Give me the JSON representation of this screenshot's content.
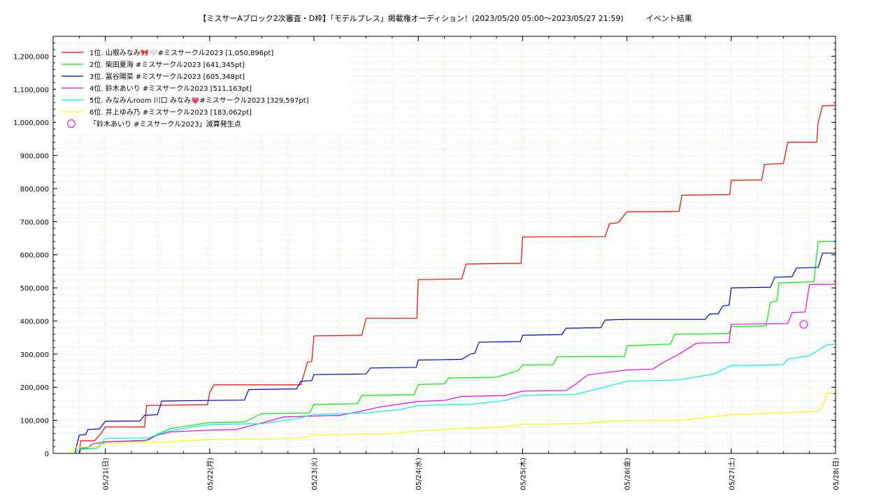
{
  "chart_data": {
    "type": "line",
    "title": "【ミスサーAブロック2次審査・D枠】「モデルプレス」掲載権オーディション！(2023/05/20 05:00〜2023/05/27 21:59)",
    "subtitle": "イベント結果",
    "xlabel": "",
    "ylabel": "",
    "x_range": [
      "2023-05-20 12:00",
      "2023-05-28 00:00"
    ],
    "ylim": [
      0,
      1260000
    ],
    "x_ticks": [
      {
        "date": "2023-05-21",
        "label": "05/21(日)"
      },
      {
        "date": "2023-05-22",
        "label": "05/22(月)"
      },
      {
        "date": "2023-05-23",
        "label": "05/23(火)"
      },
      {
        "date": "2023-05-24",
        "label": "05/24(水)"
      },
      {
        "date": "2023-05-25",
        "label": "05/25(木)"
      },
      {
        "date": "2023-05-26",
        "label": "05/26(金)"
      },
      {
        "date": "2023-05-27",
        "label": "05/27(土)"
      },
      {
        "date": "2023-05-28",
        "label": "05/28(日)"
      }
    ],
    "y_ticks": [
      {
        "value": 0,
        "label": "0"
      },
      {
        "value": 100000,
        "label": "100,000"
      },
      {
        "value": 200000,
        "label": "200,000"
      },
      {
        "value": 300000,
        "label": "300,000"
      },
      {
        "value": 400000,
        "label": "400,000"
      },
      {
        "value": 500000,
        "label": "500,000"
      },
      {
        "value": 600000,
        "label": "600,000"
      },
      {
        "value": 700000,
        "label": "700,000"
      },
      {
        "value": 800000,
        "label": "800,000"
      },
      {
        "value": 900000,
        "label": "900,000"
      },
      {
        "value": 1000000,
        "label": "1,000,000"
      },
      {
        "value": 1100000,
        "label": "1,100,000"
      },
      {
        "value": 1200000,
        "label": "1,200,000"
      }
    ],
    "grid": true,
    "legend_position": "top-left",
    "series": [
      {
        "name": "1位. 山根みなみ🎀🤍#ミスサークル2023 [1,050,896pt]",
        "color": "#ff0000",
        "points": [
          [
            "2023-05-20 18:00",
            0
          ],
          [
            "2023-05-20 18:20",
            38000
          ],
          [
            "2023-05-20 21:30",
            38000
          ],
          [
            "2023-05-20 23:00",
            60000
          ],
          [
            "2023-05-21 00:00",
            80000
          ],
          [
            "2023-05-21 09:00",
            80000
          ],
          [
            "2023-05-21 09:30",
            145000
          ],
          [
            "2023-05-21 23:30",
            147000
          ],
          [
            "2023-05-22 00:00",
            183000
          ],
          [
            "2023-05-22 01:00",
            207000
          ],
          [
            "2023-05-22 21:00",
            207000
          ],
          [
            "2023-05-22 22:30",
            275000
          ],
          [
            "2023-05-22 23:30",
            278000
          ],
          [
            "2023-05-23 00:00",
            355000
          ],
          [
            "2023-05-23 11:00",
            357000
          ],
          [
            "2023-05-23 12:00",
            408000
          ],
          [
            "2023-05-23 23:40",
            408000
          ],
          [
            "2023-05-24 00:00",
            525000
          ],
          [
            "2023-05-24 10:00",
            527000
          ],
          [
            "2023-05-24 11:00",
            572000
          ],
          [
            "2023-05-24 22:00",
            574000
          ],
          [
            "2023-05-24 23:40",
            574000
          ],
          [
            "2023-05-25 00:00",
            654000
          ],
          [
            "2023-05-25 19:00",
            655000
          ],
          [
            "2023-05-25 20:00",
            694000
          ],
          [
            "2023-05-25 22:00",
            697000
          ],
          [
            "2023-05-26 00:00",
            730000
          ],
          [
            "2023-05-26 12:00",
            731000
          ],
          [
            "2023-05-26 12:40",
            780000
          ],
          [
            "2023-05-26 23:40",
            782000
          ],
          [
            "2023-05-27 00:00",
            825000
          ],
          [
            "2023-05-27 07:00",
            826000
          ],
          [
            "2023-05-27 07:40",
            873000
          ],
          [
            "2023-05-27 12:00",
            876000
          ],
          [
            "2023-05-27 13:00",
            940000
          ],
          [
            "2023-05-27 19:40",
            940000
          ],
          [
            "2023-05-27 20:00",
            1000000
          ],
          [
            "2023-05-27 21:00",
            1050000
          ],
          [
            "2023-05-28 00:00",
            1050896
          ]
        ]
      },
      {
        "name": "2位. 柴田夏海 #ミスサークル2023 [641,345pt]",
        "color": "#00ee00",
        "points": [
          [
            "2023-05-20 18:00",
            0
          ],
          [
            "2023-05-20 18:30",
            15000
          ],
          [
            "2023-05-20 22:00",
            15000
          ],
          [
            "2023-05-21 00:00",
            35000
          ],
          [
            "2023-05-21 10:00",
            40000
          ],
          [
            "2023-05-21 12:00",
            58000
          ],
          [
            "2023-05-21 15:00",
            75000
          ],
          [
            "2023-05-21 20:00",
            85000
          ],
          [
            "2023-05-22 00:00",
            93000
          ],
          [
            "2023-05-22 08:00",
            95000
          ],
          [
            "2023-05-22 12:00",
            120000
          ],
          [
            "2023-05-22 23:00",
            122000
          ],
          [
            "2023-05-23 00:00",
            148000
          ],
          [
            "2023-05-23 10:00",
            150000
          ],
          [
            "2023-05-23 11:00",
            175000
          ],
          [
            "2023-05-23 23:00",
            177000
          ],
          [
            "2023-05-24 00:00",
            208000
          ],
          [
            "2023-05-24 06:00",
            210000
          ],
          [
            "2023-05-24 07:00",
            228000
          ],
          [
            "2023-05-24 18:00",
            230000
          ],
          [
            "2023-05-24 23:00",
            250000
          ],
          [
            "2023-05-25 00:00",
            267000
          ],
          [
            "2023-05-25 07:00",
            268000
          ],
          [
            "2023-05-25 08:00",
            292000
          ],
          [
            "2023-05-25 23:30",
            293000
          ],
          [
            "2023-05-26 00:00",
            325000
          ],
          [
            "2023-05-26 10:00",
            330000
          ],
          [
            "2023-05-26 11:00",
            360000
          ],
          [
            "2023-05-26 23:30",
            362000
          ],
          [
            "2023-05-27 00:00",
            383000
          ],
          [
            "2023-05-27 08:00",
            385000
          ],
          [
            "2023-05-27 09:00",
            457000
          ],
          [
            "2023-05-27 10:30",
            460000
          ],
          [
            "2023-05-27 11:00",
            515000
          ],
          [
            "2023-05-27 19:00",
            518000
          ],
          [
            "2023-05-27 20:00",
            640000
          ],
          [
            "2023-05-28 00:00",
            641345
          ]
        ]
      },
      {
        "name": "3位. 冨谷陽菜 #ミスサークル2023 [605,348pt]",
        "color": "#0000cc",
        "points": [
          [
            "2023-05-20 17:00",
            0
          ],
          [
            "2023-05-20 18:00",
            55000
          ],
          [
            "2023-05-20 19:30",
            57000
          ],
          [
            "2023-05-20 20:00",
            72000
          ],
          [
            "2023-05-20 22:40",
            74000
          ],
          [
            "2023-05-21 00:00",
            97000
          ],
          [
            "2023-05-21 08:00",
            98000
          ],
          [
            "2023-05-21 09:00",
            115000
          ],
          [
            "2023-05-21 12:00",
            117000
          ],
          [
            "2023-05-21 13:00",
            158000
          ],
          [
            "2023-05-21 23:30",
            160000
          ],
          [
            "2023-05-22 00:00",
            160000
          ],
          [
            "2023-05-22 08:00",
            161000
          ],
          [
            "2023-05-22 09:00",
            193000
          ],
          [
            "2023-05-22 20:00",
            195000
          ],
          [
            "2023-05-22 21:00",
            218000
          ],
          [
            "2023-05-22 23:30",
            220000
          ],
          [
            "2023-05-23 00:00",
            238000
          ],
          [
            "2023-05-23 12:00",
            240000
          ],
          [
            "2023-05-23 13:00",
            258000
          ],
          [
            "2023-05-23 23:30",
            260000
          ],
          [
            "2023-05-24 00:00",
            282000
          ],
          [
            "2023-05-24 10:00",
            284000
          ],
          [
            "2023-05-24 12:00",
            300000
          ],
          [
            "2023-05-24 13:00",
            302000
          ],
          [
            "2023-05-24 14:00",
            336000
          ],
          [
            "2023-05-24 23:30",
            338000
          ],
          [
            "2023-05-25 00:00",
            357000
          ],
          [
            "2023-05-25 09:00",
            359000
          ],
          [
            "2023-05-25 10:00",
            378000
          ],
          [
            "2023-05-25 18:00",
            380000
          ],
          [
            "2023-05-25 19:00",
            403000
          ],
          [
            "2023-05-26 00:00",
            405000
          ],
          [
            "2023-05-26 18:00",
            405000
          ],
          [
            "2023-05-26 19:00",
            421000
          ],
          [
            "2023-05-26 21:00",
            422000
          ],
          [
            "2023-05-26 22:00",
            445000
          ],
          [
            "2023-05-26 23:30",
            448000
          ],
          [
            "2023-05-27 00:00",
            500000
          ],
          [
            "2023-05-27 09:00",
            502000
          ],
          [
            "2023-05-27 10:00",
            532000
          ],
          [
            "2023-05-27 14:00",
            534000
          ],
          [
            "2023-05-27 15:00",
            560000
          ],
          [
            "2023-05-27 20:00",
            562000
          ],
          [
            "2023-05-27 21:00",
            605000
          ],
          [
            "2023-05-28 00:00",
            605348
          ]
        ]
      },
      {
        "name": "4位. 鈴木あいり #ミスサークル2023 [511,163pt]",
        "color": "#ee00ee",
        "points": [
          [
            "2023-05-20 18:00",
            0
          ],
          [
            "2023-05-20 18:30",
            17000
          ],
          [
            "2023-05-20 20:00",
            18000
          ],
          [
            "2023-05-20 21:00",
            28000
          ],
          [
            "2023-05-21 00:00",
            35000
          ],
          [
            "2023-05-21 09:00",
            38000
          ],
          [
            "2023-05-21 12:00",
            55000
          ],
          [
            "2023-05-21 15:00",
            65000
          ],
          [
            "2023-05-22 00:00",
            70000
          ],
          [
            "2023-05-22 06:00",
            72000
          ],
          [
            "2023-05-22 09:00",
            82000
          ],
          [
            "2023-05-22 12:00",
            92000
          ],
          [
            "2023-05-22 17:00",
            110000
          ],
          [
            "2023-05-23 00:00",
            113000
          ],
          [
            "2023-05-23 06:00",
            115000
          ],
          [
            "2023-05-23 10:00",
            125000
          ],
          [
            "2023-05-23 15:00",
            140000
          ],
          [
            "2023-05-24 00:00",
            157000
          ],
          [
            "2023-05-24 06:00",
            160000
          ],
          [
            "2023-05-24 10:00",
            172000
          ],
          [
            "2023-05-24 20:00",
            175000
          ],
          [
            "2023-05-25 00:00",
            188000
          ],
          [
            "2023-05-25 10:00",
            190000
          ],
          [
            "2023-05-25 12:00",
            207000
          ],
          [
            "2023-05-25 15:00",
            237000
          ],
          [
            "2023-05-26 00:00",
            252000
          ],
          [
            "2023-05-26 06:00",
            255000
          ],
          [
            "2023-05-26 08:00",
            272000
          ],
          [
            "2023-05-26 12:00",
            300000
          ],
          [
            "2023-05-26 16:00",
            333000
          ],
          [
            "2023-05-26 23:30",
            335000
          ],
          [
            "2023-05-27 00:00",
            390000
          ],
          [
            "2023-05-27 13:00",
            392000
          ],
          [
            "2023-05-27 14:00",
            425000
          ],
          [
            "2023-05-27 17:00",
            427000
          ],
          [
            "2023-05-27 18:00",
            510000
          ],
          [
            "2023-05-28 00:00",
            511163
          ]
        ]
      },
      {
        "name": "5位. みなみんroom 川口 みなみ💗#ミスサークル2023 [329,597pt]",
        "color": "#00eeee",
        "points": [
          [
            "2023-05-20 17:00",
            0
          ],
          [
            "2023-05-20 18:00",
            12000
          ],
          [
            "2023-05-20 22:00",
            15000
          ],
          [
            "2023-05-21 00:00",
            45000
          ],
          [
            "2023-05-21 10:00",
            47000
          ],
          [
            "2023-05-21 14:00",
            65000
          ],
          [
            "2023-05-21 20:00",
            80000
          ],
          [
            "2023-05-22 00:00",
            87000
          ],
          [
            "2023-05-22 12:00",
            90000
          ],
          [
            "2023-05-22 20:00",
            105000
          ],
          [
            "2023-05-23 00:00",
            118000
          ],
          [
            "2023-05-23 12:00",
            122000
          ],
          [
            "2023-05-23 20:00",
            133000
          ],
          [
            "2023-05-24 00:00",
            145000
          ],
          [
            "2023-05-24 12:00",
            148000
          ],
          [
            "2023-05-24 20:00",
            160000
          ],
          [
            "2023-05-25 00:00",
            175000
          ],
          [
            "2023-05-25 12:00",
            178000
          ],
          [
            "2023-05-25 19:00",
            200000
          ],
          [
            "2023-05-26 00:00",
            218000
          ],
          [
            "2023-05-26 12:00",
            222000
          ],
          [
            "2023-05-26 20:00",
            240000
          ],
          [
            "2023-05-27 00:00",
            265000
          ],
          [
            "2023-05-27 12:00",
            268000
          ],
          [
            "2023-05-27 13:00",
            285000
          ],
          [
            "2023-05-27 18:00",
            295000
          ],
          [
            "2023-05-27 22:00",
            328000
          ],
          [
            "2023-05-28 00:00",
            329597
          ]
        ]
      },
      {
        "name": "6位. 井上ゆみ乃 #ミスサークル2023 [183,062pt]",
        "color": "#ffff00",
        "points": [
          [
            "2023-05-20 16:00",
            0
          ],
          [
            "2023-05-20 17:00",
            18000
          ],
          [
            "2023-05-20 22:00",
            20000
          ],
          [
            "2023-05-21 00:00",
            30000
          ],
          [
            "2023-05-21 15:00",
            35000
          ],
          [
            "2023-05-22 00:00",
            42000
          ],
          [
            "2023-05-22 20:00",
            45000
          ],
          [
            "2023-05-23 00:00",
            55000
          ],
          [
            "2023-05-23 18:00",
            60000
          ],
          [
            "2023-05-24 00:00",
            68000
          ],
          [
            "2023-05-24 10:00",
            75000
          ],
          [
            "2023-05-24 20:00",
            80000
          ],
          [
            "2023-05-25 00:00",
            88000
          ],
          [
            "2023-05-25 14:00",
            90000
          ],
          [
            "2023-05-25 20:00",
            98000
          ],
          [
            "2023-05-26 12:00",
            100000
          ],
          [
            "2023-05-26 18:00",
            108000
          ],
          [
            "2023-05-27 00:00",
            117000
          ],
          [
            "2023-05-27 10:00",
            122000
          ],
          [
            "2023-05-27 20:00",
            127000
          ],
          [
            "2023-05-27 21:00",
            140000
          ],
          [
            "2023-05-27 22:00",
            182000
          ],
          [
            "2023-05-28 00:00",
            183062
          ]
        ]
      }
    ],
    "annotations": [
      {
        "label": "「鈴木あいり #ミスサークル2023」減算発生点",
        "color": "#ee00ee",
        "marker": "circle",
        "points": [
          [
            "2023-05-27 16:40",
            390000
          ]
        ]
      }
    ]
  }
}
